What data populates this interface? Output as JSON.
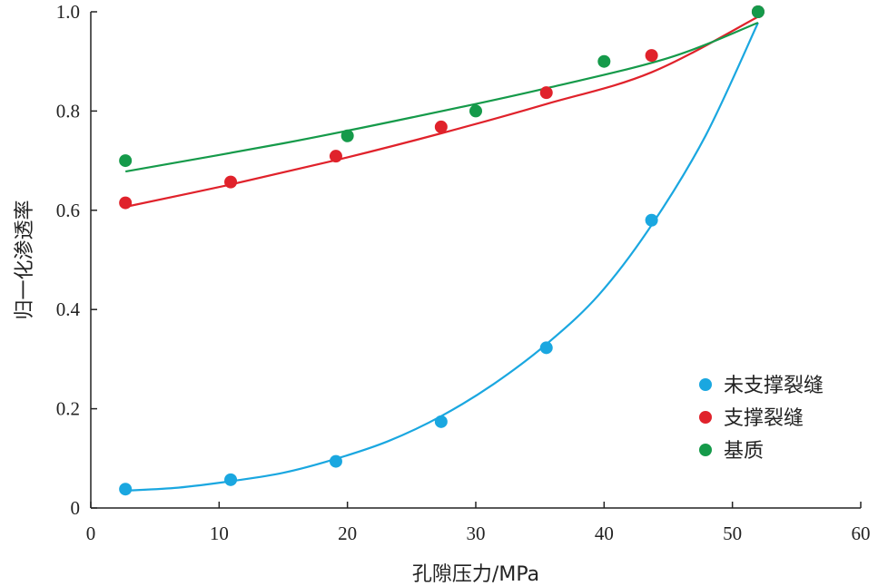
{
  "chart_data": {
    "type": "scatter",
    "title": "",
    "xlabel": "孔隙压力/MPa",
    "ylabel": "归一化渗透率",
    "xlim": [
      0,
      60
    ],
    "ylim": [
      0,
      1.0
    ],
    "x_ticks": [
      "0",
      "10",
      "20",
      "30",
      "40",
      "50",
      "60"
    ],
    "y_ticks": [
      "0",
      "0.2",
      "0.4",
      "0.6",
      "0.8",
      "1.0"
    ],
    "x_tick_values": [
      0,
      10,
      20,
      30,
      40,
      50,
      60
    ],
    "y_tick_values": [
      0,
      0.2,
      0.4,
      0.6,
      0.8,
      1.0
    ],
    "grid": false,
    "legend_position": "bottom-right",
    "series": [
      {
        "name": "未支撑裂缝",
        "color": "#1aa7e0",
        "points": [
          [
            2.7,
            0.038
          ],
          [
            10.9,
            0.057
          ],
          [
            19.1,
            0.094
          ],
          [
            27.3,
            0.174
          ],
          [
            35.5,
            0.323
          ],
          [
            43.7,
            0.58
          ],
          [
            52.0,
            1.0
          ]
        ],
        "fit": [
          [
            2.7,
            0.035
          ],
          [
            6.8,
            0.041
          ],
          [
            10.9,
            0.054
          ],
          [
            15.0,
            0.071
          ],
          [
            19.1,
            0.099
          ],
          [
            23.2,
            0.135
          ],
          [
            27.3,
            0.185
          ],
          [
            31.4,
            0.25
          ],
          [
            35.5,
            0.33
          ],
          [
            39.6,
            0.43
          ],
          [
            43.7,
            0.57
          ],
          [
            47.9,
            0.75
          ],
          [
            52.0,
            0.978
          ]
        ]
      },
      {
        "name": "支撑裂缝",
        "color": "#e0222b",
        "points": [
          [
            2.7,
            0.615
          ],
          [
            10.9,
            0.657
          ],
          [
            19.1,
            0.709
          ],
          [
            27.3,
            0.768
          ],
          [
            35.5,
            0.837
          ],
          [
            43.7,
            0.912
          ],
          [
            52.0,
            1.0
          ]
        ],
        "fit": [
          [
            2.7,
            0.607
          ],
          [
            10.9,
            0.652
          ],
          [
            19.1,
            0.701
          ],
          [
            27.3,
            0.755
          ],
          [
            35.5,
            0.814
          ],
          [
            43.7,
            0.878
          ],
          [
            52.0,
            0.99
          ]
        ]
      },
      {
        "name": "基质",
        "color": "#159a4a",
        "points": [
          [
            2.7,
            0.7
          ],
          [
            20.0,
            0.75
          ],
          [
            30.0,
            0.8
          ],
          [
            40.0,
            0.9
          ],
          [
            52.0,
            1.0
          ]
        ],
        "fit": [
          [
            2.7,
            0.678
          ],
          [
            15.0,
            0.735
          ],
          [
            25.0,
            0.787
          ],
          [
            35.0,
            0.843
          ],
          [
            45.0,
            0.907
          ],
          [
            52.0,
            0.978
          ]
        ]
      }
    ]
  }
}
